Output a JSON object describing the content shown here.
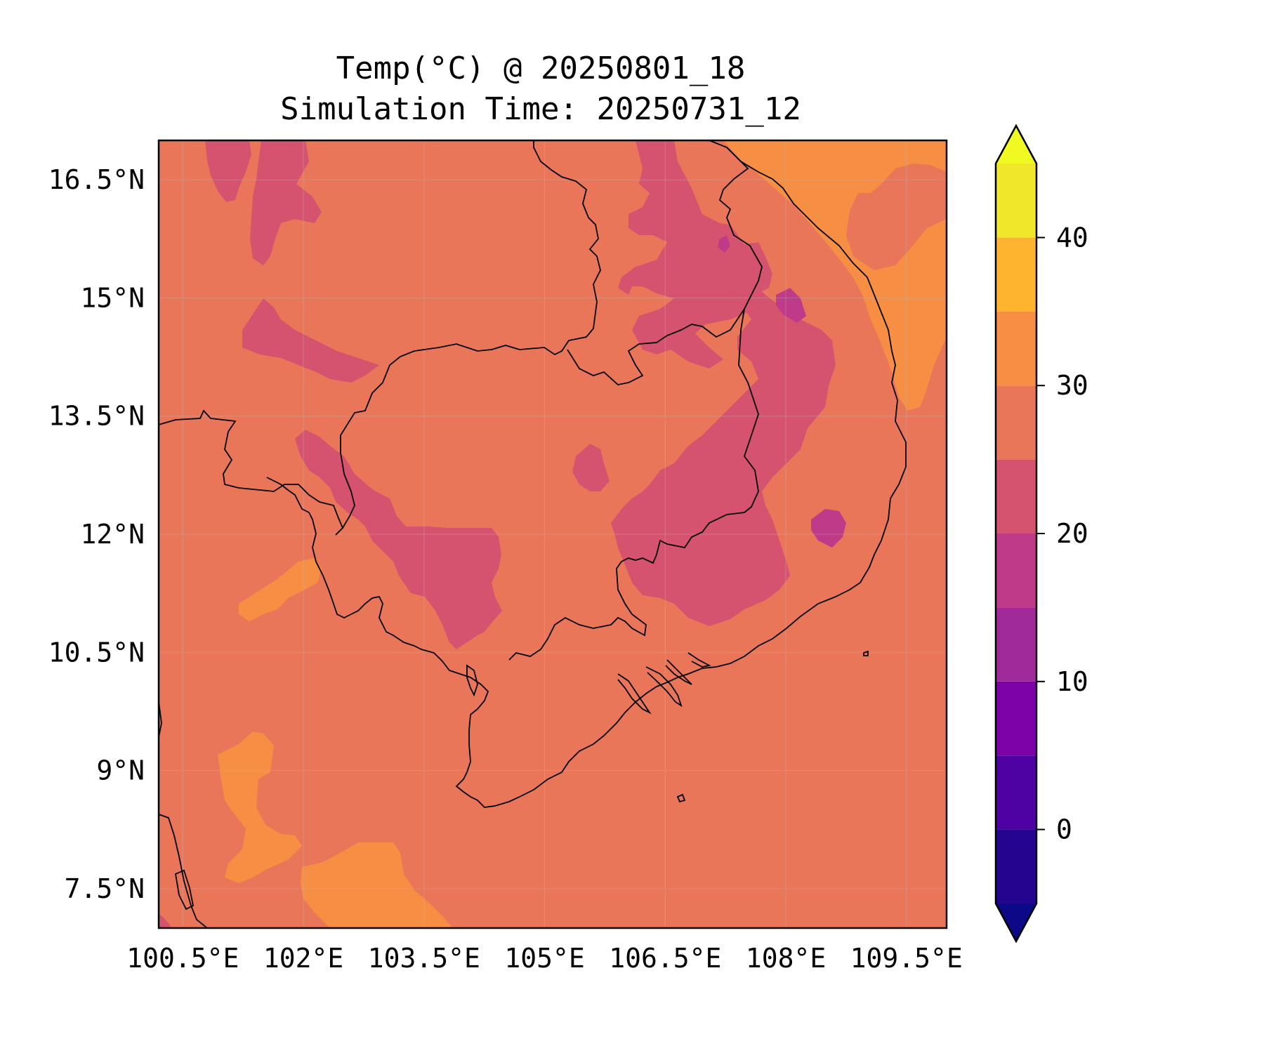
{
  "title": "Temp(°C) @ 20250801_18",
  "subtitle": "Simulation Time: 20250731_12",
  "map": {
    "projection": "PlateCarree",
    "lon_range": [
      100.2,
      110.0
    ],
    "lat_range": [
      7.0,
      17.0
    ],
    "x_ticks": [
      {
        "value": 100.5,
        "label": "100.5°E"
      },
      {
        "value": 102.0,
        "label": "102°E"
      },
      {
        "value": 103.5,
        "label": "103.5°E"
      },
      {
        "value": 105.0,
        "label": "105°E"
      },
      {
        "value": 106.5,
        "label": "106.5°E"
      },
      {
        "value": 108.0,
        "label": "108°E"
      },
      {
        "value": 109.5,
        "label": "109.5°E"
      }
    ],
    "y_ticks": [
      {
        "value": 16.5,
        "label": "16.5°N"
      },
      {
        "value": 15.0,
        "label": "15°N"
      },
      {
        "value": 13.5,
        "label": "13.5°N"
      },
      {
        "value": 12.0,
        "label": "12°N"
      },
      {
        "value": 10.5,
        "label": "10.5°N"
      },
      {
        "value": 9.0,
        "label": "9°N"
      },
      {
        "value": 7.5,
        "label": "7.5°N"
      }
    ],
    "gridlines": true,
    "background_level_color": "#ea7659"
  },
  "colorbar": {
    "extend": "both",
    "range": [
      -5,
      45
    ],
    "levels": [
      {
        "from": -5,
        "to": 0,
        "color": "#23058f"
      },
      {
        "from": 0,
        "to": 5,
        "color": "#4f02a3"
      },
      {
        "from": 5,
        "to": 10,
        "color": "#7d03a8"
      },
      {
        "from": 10,
        "to": 15,
        "color": "#a02a9a"
      },
      {
        "from": 15,
        "to": 20,
        "color": "#bf3a88"
      },
      {
        "from": 20,
        "to": 25,
        "color": "#d65370"
      },
      {
        "from": 25,
        "to": 30,
        "color": "#ea7659"
      },
      {
        "from": 30,
        "to": 35,
        "color": "#f68f44"
      },
      {
        "from": 35,
        "to": 40,
        "color": "#feb42f"
      },
      {
        "from": 40,
        "to": 45,
        "color": "#f0e62a"
      }
    ],
    "under_color": "#0d0887",
    "over_color": "#f0f921",
    "ticks": [
      {
        "value": 0,
        "label": "0"
      },
      {
        "value": 10,
        "label": "10"
      },
      {
        "value": 20,
        "label": "20"
      },
      {
        "value": 30,
        "label": "30"
      },
      {
        "value": 40,
        "label": "40"
      }
    ]
  }
}
